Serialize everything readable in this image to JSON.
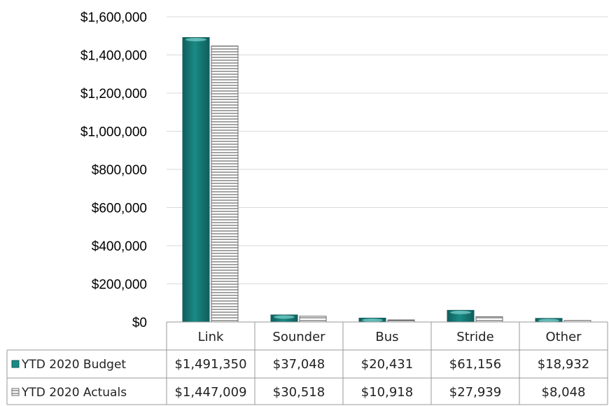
{
  "chart_data": {
    "type": "bar",
    "categories": [
      "Link",
      "Sounder",
      "Bus",
      "Stride",
      "Other"
    ],
    "series": [
      {
        "name": "YTD 2020 Budget",
        "values": [
          1491350,
          37048,
          20431,
          61156,
          18932
        ],
        "labels": [
          "$1,491,350",
          "$37,048",
          "$20,431",
          "$61,156",
          "$18,932"
        ],
        "color": "#1a8a86"
      },
      {
        "name": "YTD 2020 Actuals",
        "values": [
          1447009,
          30518,
          10918,
          27939,
          8048
        ],
        "labels": [
          "$1,447,009",
          "$30,518",
          "$10,918",
          "$27,939",
          "$8,048"
        ],
        "color": "#ffffff"
      }
    ],
    "ylim": [
      0,
      1600000
    ],
    "yticks": [
      0,
      200000,
      400000,
      600000,
      800000,
      1000000,
      1200000,
      1400000,
      1600000
    ],
    "ytick_labels": [
      "$0",
      "$200,000",
      "$400,000",
      "$600,000",
      "$800,000",
      "$1,000,000",
      "$1,200,000",
      "$1,400,000",
      "$1,600,000"
    ],
    "grid": true,
    "legend": "data-table",
    "title": "",
    "xlabel": "",
    "ylabel": ""
  },
  "colors": {
    "gridline": "#d9d9d9",
    "table_border": "#9a9a9a",
    "budget_fill": "#1a8a86",
    "budget_dark": "#0f5e5b",
    "actuals_stripe": "#4a4a4a"
  }
}
